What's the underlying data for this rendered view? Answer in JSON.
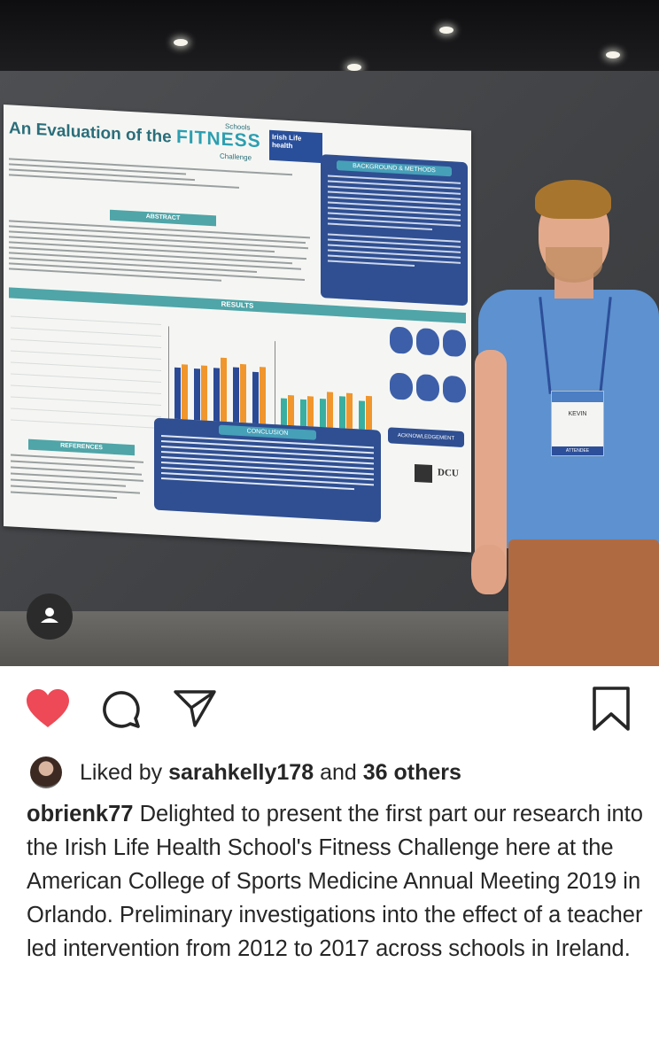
{
  "poster": {
    "title_prefix": "An Evaluation of the",
    "title_fitness": "FITNESS",
    "title_schools": "Schools",
    "title_challenge": "Challenge",
    "logo_text": "Irish Life health",
    "abstract_label": "ABSTRACT",
    "background_label": "BACKGROUND & METHODS",
    "results_label": "RESULTS",
    "conclusion_label": "CONCLUSION",
    "acknowledgement_label": "ACKNOWLEDGEMENT",
    "references_label": "REFERENCES",
    "partner_logo": "DCU"
  },
  "badge": {
    "name": "KEVIN",
    "role": "ATTENDEE"
  },
  "icons": {
    "like": "heart-icon",
    "comment": "comment-icon",
    "share": "share-icon",
    "save": "bookmark-icon",
    "tagged": "person-icon"
  },
  "colors": {
    "like_red": "#ed4956",
    "text": "#262626"
  },
  "likes": {
    "prefix": "Liked by",
    "user": "sarahkelly178",
    "joiner": "and",
    "others": "36 others"
  },
  "caption": {
    "username": "obrienk77",
    "text": "Delighted to present the first part our research into the Irish Life Health School's Fitness Challenge here at the American College of Sports Medicine Annual Meeting 2019 in Orlando. Preliminary investigations into the effect of a teacher led intervention from 2012 to 2017 across schools in Ireland."
  }
}
